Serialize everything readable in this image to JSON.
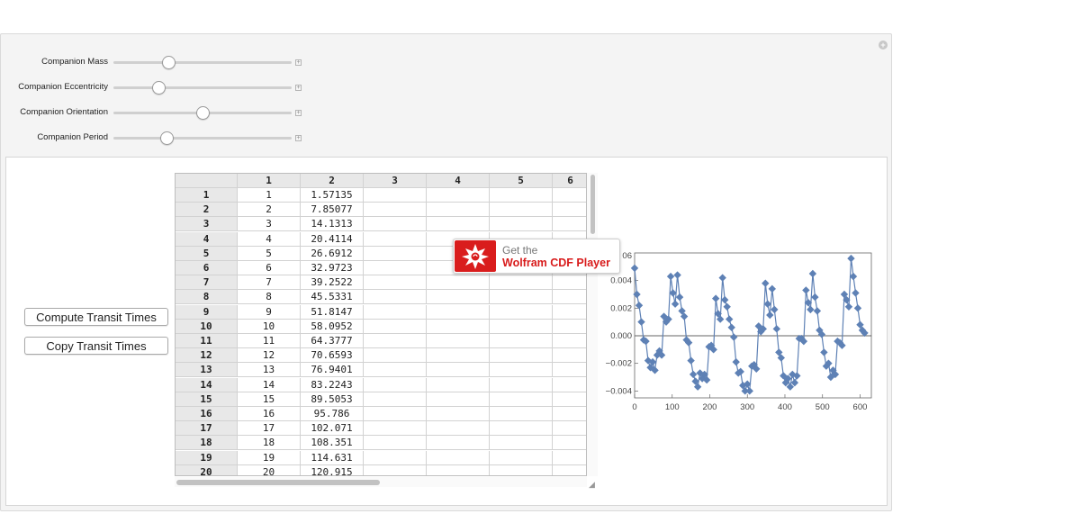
{
  "controls": [
    {
      "label": "Companion Mass",
      "value": 0.31
    },
    {
      "label": "Companion Eccentricity",
      "value": 0.25
    },
    {
      "label": "Companion Orientation",
      "value": 0.5
    },
    {
      "label": "Companion Period",
      "value": 0.3
    }
  ],
  "buttons": {
    "compute": "Compute Transit Times",
    "copy": "Copy Transit Times"
  },
  "table": {
    "col_headers": [
      "1",
      "2",
      "3",
      "4",
      "5",
      "6"
    ],
    "row_headers": [
      "1",
      "2",
      "3",
      "4",
      "5",
      "6",
      "7",
      "8",
      "9",
      "10",
      "11",
      "12",
      "13",
      "14",
      "15",
      "16",
      "17",
      "18",
      "19",
      "20"
    ],
    "col1": [
      "1",
      "2",
      "3",
      "4",
      "5",
      "6",
      "7",
      "8",
      "9",
      "10",
      "11",
      "12",
      "13",
      "14",
      "15",
      "16",
      "17",
      "18",
      "19",
      "20"
    ],
    "col2": [
      "1.57135",
      "7.85077",
      "14.1313",
      "20.4114",
      "26.6912",
      "32.9723",
      "39.2522",
      "45.5331",
      "51.8147",
      "58.0952",
      "64.3777",
      "70.6593",
      "76.9401",
      "83.2243",
      "89.5053",
      "95.786",
      "102.071",
      "108.351",
      "114.631",
      "120.915"
    ]
  },
  "cdf_banner": {
    "line1": "Get the",
    "line2": "Wolfram CDF Player"
  },
  "chart_data": {
    "type": "line",
    "x_ticks": [
      "0",
      "100",
      "200",
      "300",
      "400",
      "500",
      "600"
    ],
    "y_ticks": [
      "0.004",
      "0.002",
      "0.000",
      "−0.002",
      "−0.004"
    ],
    "y_partial_label": "06",
    "xlim": [
      0,
      630
    ],
    "ylim": [
      -0.0045,
      0.006
    ],
    "color": "#5e81b5",
    "x": [
      0,
      6,
      12,
      18,
      24,
      30,
      36,
      42,
      48,
      54,
      60,
      66,
      72,
      78,
      84,
      90,
      96,
      102,
      108,
      114,
      120,
      126,
      132,
      138,
      144,
      150,
      156,
      162,
      168,
      174,
      180,
      186,
      192,
      198,
      204,
      210,
      216,
      222,
      228,
      234,
      240,
      246,
      252,
      258,
      264,
      270,
      276,
      282,
      288,
      294,
      300,
      306,
      312,
      318,
      324,
      330,
      336,
      342,
      348,
      354,
      360,
      366,
      372,
      378,
      384,
      390,
      396,
      402,
      408,
      414,
      420,
      426,
      432,
      438,
      444,
      450,
      456,
      462,
      468,
      474,
      480,
      486,
      492,
      498,
      504,
      510,
      516,
      522,
      528,
      534,
      540,
      546,
      552,
      558,
      564,
      570,
      576,
      582,
      588,
      594,
      600,
      606,
      612
    ],
    "y": [
      0.0049,
      0.003,
      0.0022,
      0.001,
      -0.0003,
      -0.0004,
      -0.0018,
      -0.0023,
      -0.0019,
      -0.0025,
      -0.0014,
      -0.0011,
      -0.0014,
      0.0014,
      0.001,
      0.0012,
      0.0043,
      0.0031,
      0.0023,
      0.0044,
      0.0028,
      0.0018,
      0.0014,
      -0.0003,
      -0.0005,
      -0.0018,
      -0.0028,
      -0.0033,
      -0.0037,
      -0.0027,
      -0.0031,
      -0.0028,
      -0.0032,
      -0.0008,
      -0.0007,
      -0.001,
      0.0027,
      0.0016,
      0.0012,
      0.0042,
      0.0026,
      0.0021,
      0.0012,
      0.0006,
      -0.0001,
      -0.0019,
      -0.0027,
      -0.0026,
      -0.0036,
      -0.004,
      -0.0035,
      -0.004,
      -0.0022,
      -0.0021,
      -0.0024,
      0.0007,
      0.0003,
      0.0005,
      0.0038,
      0.0023,
      0.0015,
      0.0034,
      0.0019,
      0.0005,
      -0.0012,
      -0.0016,
      -0.0029,
      -0.0034,
      -0.0031,
      -0.0037,
      -0.0028,
      -0.0034,
      -0.0029,
      -0.0002,
      -0.0002,
      -0.0004,
      0.0033,
      0.0024,
      0.0019,
      0.0045,
      0.0028,
      0.0018,
      0.0004,
      0.0001,
      -0.0012,
      -0.0022,
      -0.002,
      -0.003,
      -0.0025,
      -0.0028,
      -0.0004,
      -0.0005,
      -0.0007,
      0.003,
      0.0026,
      0.0021,
      0.0056,
      0.0043,
      0.0031,
      0.002,
      0.0008,
      0.0004,
      0.0002
    ]
  }
}
